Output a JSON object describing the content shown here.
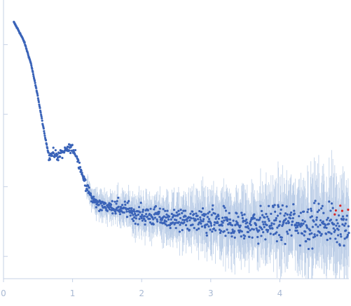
{
  "chart_data": {
    "type": "scatter",
    "title": "",
    "xlabel": "",
    "ylabel": "",
    "xlim": [
      0,
      5.0
    ],
    "ylim": [
      0,
      1
    ],
    "grid": false,
    "legend": false,
    "x_ticks": [
      0,
      1,
      2,
      3,
      4
    ],
    "x_tick_labels": [
      "0",
      "1",
      "2",
      "3",
      "4"
    ],
    "y_ticks": [
      0.08,
      0.33,
      0.59,
      0.84
    ],
    "colors": {
      "axis": "#c5d1e6",
      "points": "#3a63b8",
      "error_bars": "#b8cbe6",
      "outliers": "#d62728"
    },
    "series": [
      {
        "kind": "scattering-profile",
        "x_range": [
          0.15,
          5.0
        ],
        "n_points": 900,
        "profile": [
          [
            0.15,
            0.92
          ],
          [
            0.22,
            0.89
          ],
          [
            0.3,
            0.85
          ],
          [
            0.4,
            0.77
          ],
          [
            0.5,
            0.65
          ],
          [
            0.6,
            0.51
          ],
          [
            0.66,
            0.44
          ],
          [
            0.72,
            0.45
          ],
          [
            0.8,
            0.44
          ],
          [
            0.9,
            0.46
          ],
          [
            0.98,
            0.47
          ],
          [
            1.05,
            0.45
          ],
          [
            1.12,
            0.39
          ],
          [
            1.2,
            0.33
          ],
          [
            1.3,
            0.28
          ],
          [
            1.45,
            0.26
          ],
          [
            1.7,
            0.25
          ],
          [
            2.0,
            0.23
          ],
          [
            2.5,
            0.21
          ],
          [
            3.0,
            0.2
          ],
          [
            3.5,
            0.19
          ],
          [
            4.0,
            0.2
          ],
          [
            4.5,
            0.2
          ],
          [
            5.0,
            0.2
          ]
        ],
        "scatter_rises_with_x": true
      }
    ],
    "outlier_region_x": [
      4.75,
      5.0
    ]
  }
}
